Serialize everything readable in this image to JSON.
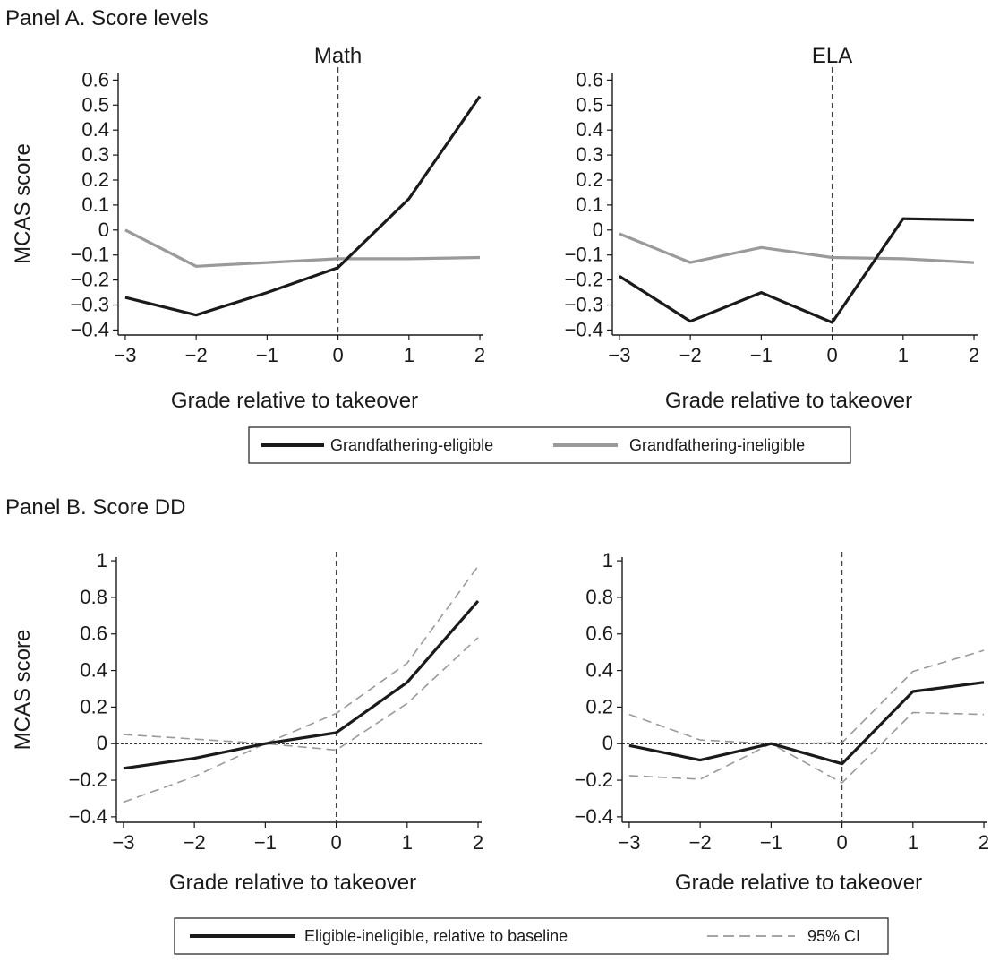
{
  "panels": [
    {
      "title": "Panel A. Score levels"
    },
    {
      "title": "Panel B. Score DD"
    }
  ],
  "legends": [
    {
      "items": [
        {
          "label": "Grandfathering-eligible",
          "color": "#1a1a1a",
          "style": "solid"
        },
        {
          "label": "Grandfathering-ineligible",
          "color": "#9a9a9a",
          "style": "solid"
        }
      ]
    },
    {
      "items": [
        {
          "label": "Eligible-ineligible, relative to baseline",
          "color": "#1a1a1a",
          "style": "solid"
        },
        {
          "label": "95% CI",
          "color": "#9a9a9a",
          "style": "dashed"
        }
      ]
    }
  ],
  "chart_data": [
    {
      "type": "line",
      "panel": "Panel A. Score levels",
      "title": "Math",
      "xlabel": "Grade relative to takeover",
      "ylabel": "MCAS score",
      "x": [
        -3,
        -2,
        -1,
        0,
        1,
        2
      ],
      "xlim": [
        -3.1,
        2.05
      ],
      "ylim": [
        -0.42,
        0.63
      ],
      "xticks": [
        -3,
        -2,
        -1,
        0,
        1,
        2
      ],
      "xtick_labels": [
        "−3",
        "−2",
        "−1",
        "0",
        "1",
        "2"
      ],
      "yticks": [
        -0.4,
        -0.3,
        -0.2,
        -0.1,
        0,
        0.1,
        0.2,
        0.3,
        0.4,
        0.5,
        0.6
      ],
      "ytick_labels": [
        "−0.4",
        "−0.3",
        "−0.2",
        "−0.1",
        "0",
        "0.1",
        "0.2",
        "0.3",
        "0.4",
        "0.5",
        "0.6"
      ],
      "vline": 0,
      "series": [
        {
          "name": "Grandfathering-eligible",
          "color": "#1a1a1a",
          "values": [
            -0.27,
            -0.34,
            -0.25,
            -0.15,
            0.125,
            0.535
          ]
        },
        {
          "name": "Grandfathering-ineligible",
          "color": "#9a9a9a",
          "values": [
            0.0,
            -0.145,
            -0.13,
            -0.115,
            -0.115,
            -0.11
          ]
        }
      ]
    },
    {
      "type": "line",
      "panel": "Panel A. Score levels",
      "title": "ELA",
      "xlabel": "Grade relative to takeover",
      "ylabel": "",
      "x": [
        -3,
        -2,
        -1,
        0,
        1,
        2
      ],
      "xlim": [
        -3.1,
        2.05
      ],
      "ylim": [
        -0.42,
        0.63
      ],
      "xticks": [
        -3,
        -2,
        -1,
        0,
        1,
        2
      ],
      "xtick_labels": [
        "−3",
        "−2",
        "−1",
        "0",
        "1",
        "2"
      ],
      "yticks": [
        -0.4,
        -0.3,
        -0.2,
        -0.1,
        0,
        0.1,
        0.2,
        0.3,
        0.4,
        0.5,
        0.6
      ],
      "ytick_labels": [
        "−0.4",
        "−0.3",
        "−0.2",
        "−0.1",
        "0",
        "0.1",
        "0.2",
        "0.3",
        "0.4",
        "0.5",
        "0.6"
      ],
      "vline": 0,
      "series": [
        {
          "name": "Grandfathering-eligible",
          "color": "#1a1a1a",
          "values": [
            -0.185,
            -0.365,
            -0.25,
            -0.37,
            0.045,
            0.04
          ]
        },
        {
          "name": "Grandfathering-ineligible",
          "color": "#9a9a9a",
          "values": [
            -0.015,
            -0.13,
            -0.07,
            -0.11,
            -0.115,
            -0.13
          ]
        }
      ]
    },
    {
      "type": "line",
      "panel": "Panel B. Score DD",
      "title": "",
      "xlabel": "Grade relative to takeover",
      "ylabel": "MCAS score",
      "x": [
        -3,
        -2,
        -1,
        0,
        1,
        2
      ],
      "xlim": [
        -3.1,
        2.05
      ],
      "ylim": [
        -0.43,
        1.02
      ],
      "xticks": [
        -3,
        -2,
        -1,
        0,
        1,
        2
      ],
      "xtick_labels": [
        "−3",
        "−2",
        "−1",
        "0",
        "1",
        "2"
      ],
      "yticks": [
        -0.4,
        -0.2,
        0,
        0.2,
        0.4,
        0.6,
        0.8,
        1
      ],
      "ytick_labels": [
        "−0.4",
        "−0.2",
        "0",
        "0.2",
        "0.4",
        "0.6",
        "0.8",
        "1"
      ],
      "vline": 0,
      "hline": 0,
      "series": [
        {
          "name": "Eligible-ineligible, relative to baseline",
          "color": "#1a1a1a",
          "values": [
            -0.135,
            -0.08,
            0.0,
            0.06,
            0.335,
            0.78
          ]
        },
        {
          "name": "95% CI",
          "color": "#9a9a9a",
          "dashed": true,
          "values": [
            0.05,
            0.025,
            0.0,
            0.165,
            0.44,
            0.97
          ]
        },
        {
          "name": "95% CI",
          "color": "#9a9a9a",
          "dashed": true,
          "values": [
            -0.32,
            -0.18,
            0.0,
            -0.035,
            0.22,
            0.58
          ]
        }
      ]
    },
    {
      "type": "line",
      "panel": "Panel B. Score DD",
      "title": "",
      "xlabel": "Grade relative to takeover",
      "ylabel": "",
      "x": [
        -3,
        -2,
        -1,
        0,
        1,
        2
      ],
      "xlim": [
        -3.1,
        2.05
      ],
      "ylim": [
        -0.43,
        1.02
      ],
      "xticks": [
        -3,
        -2,
        -1,
        0,
        1,
        2
      ],
      "xtick_labels": [
        "−3",
        "−2",
        "−1",
        "0",
        "1",
        "2"
      ],
      "yticks": [
        -0.4,
        -0.2,
        0,
        0.2,
        0.4,
        0.6,
        0.8,
        1
      ],
      "ytick_labels": [
        "−0.4",
        "−0.2",
        "0",
        "0.2",
        "0.4",
        "0.6",
        "0.8",
        "1"
      ],
      "vline": 0,
      "hline": 0,
      "series": [
        {
          "name": "Eligible-ineligible, relative to baseline",
          "color": "#1a1a1a",
          "values": [
            -0.01,
            -0.09,
            0.0,
            -0.11,
            0.285,
            0.335
          ]
        },
        {
          "name": "95% CI",
          "color": "#9a9a9a",
          "dashed": true,
          "values": [
            0.16,
            0.02,
            0.0,
            0.005,
            0.395,
            0.51
          ]
        },
        {
          "name": "95% CI",
          "color": "#9a9a9a",
          "dashed": true,
          "values": [
            -0.175,
            -0.195,
            0.0,
            -0.215,
            0.17,
            0.16
          ]
        }
      ]
    }
  ]
}
